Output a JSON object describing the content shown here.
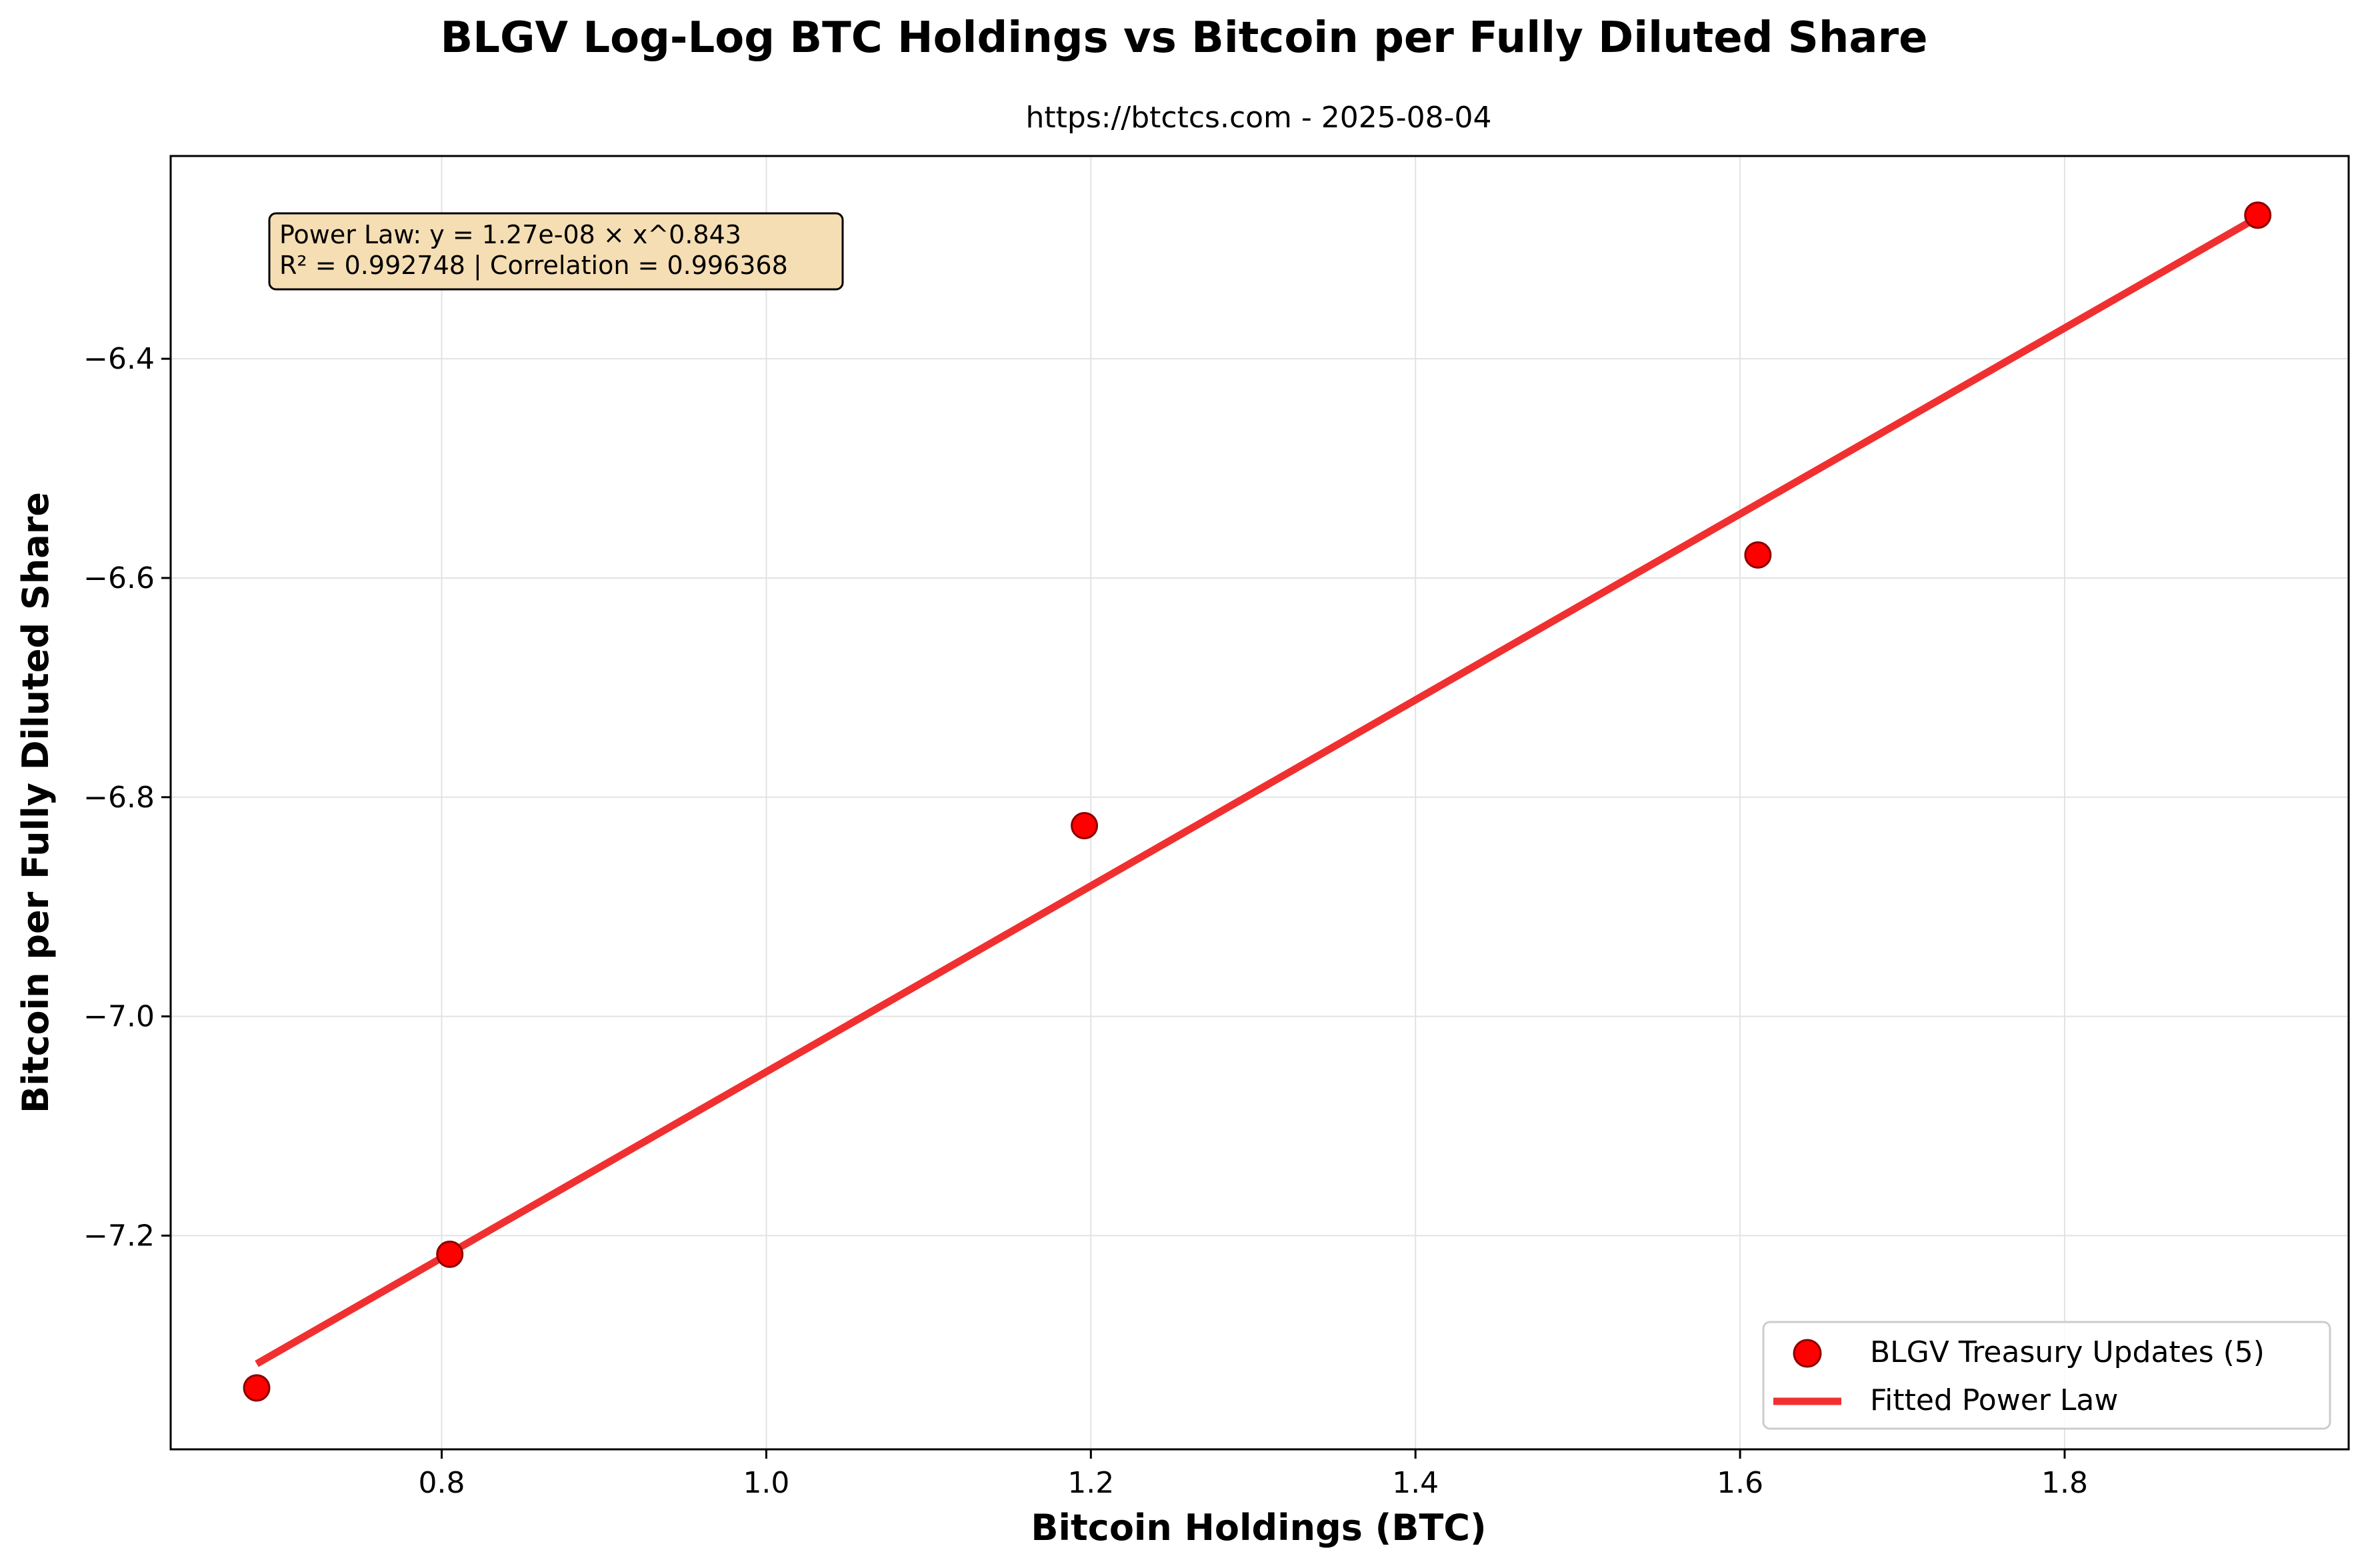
{
  "chart_data": {
    "type": "scatter",
    "title": "BLGV Log-Log BTC Holdings vs Bitcoin per Fully Diluted Share",
    "subtitle": "https://btctcs.com - 2025-08-04",
    "xlabel": "Bitcoin Holdings (BTC)",
    "ylabel": "Bitcoin per Fully Diluted Share",
    "xlim": [
      0.633,
      1.975
    ],
    "ylim": [
      -7.395,
      -6.215
    ],
    "x_ticks": [
      0.8,
      1.0,
      1.2,
      1.4,
      1.6,
      1.8
    ],
    "x_tick_labels": [
      "0.8",
      "1.0",
      "1.2",
      "1.4",
      "1.6",
      "1.8"
    ],
    "y_ticks": [
      -6.4,
      -6.6,
      -6.8,
      -7.0,
      -7.2
    ],
    "y_tick_labels": [
      "−6.4",
      "−6.6",
      "−6.8",
      "−7.0",
      "−7.2"
    ],
    "grid": true,
    "legend_position": "bottom-right",
    "series": [
      {
        "name": "BLGV Treasury Updates (5)",
        "kind": "scatter",
        "color": "#ff0000",
        "edge_color": "#8b0000",
        "x": [
          0.686,
          0.805,
          1.196,
          1.611,
          1.919
        ],
        "y": [
          -7.339,
          -7.217,
          -6.826,
          -6.579,
          -6.269
        ]
      },
      {
        "name": "Fitted Power Law",
        "kind": "line",
        "color": "#f03030",
        "x": [
          0.686,
          1.919
        ],
        "y": [
          -7.317,
          -6.271
        ]
      }
    ],
    "annotation": {
      "line1": "Power Law: y = 1.27e-08 × x^0.843",
      "line2": "R² = 0.992748 | Correlation = 0.996368",
      "background": "#f5deb3"
    }
  }
}
